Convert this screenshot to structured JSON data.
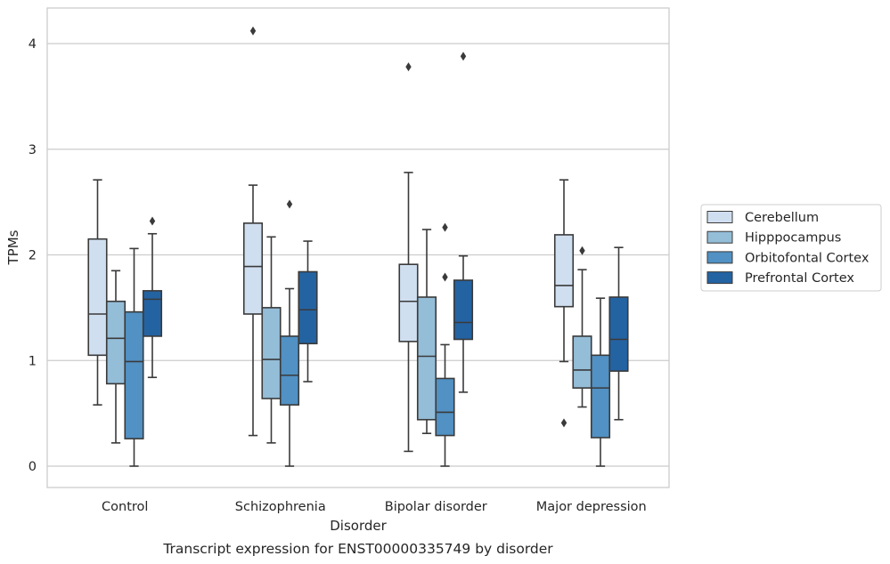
{
  "chart_data": {
    "type": "box",
    "caption": "Transcript expression for ENST00000335749 by disorder",
    "xlabel": "Disorder",
    "ylabel": "TPMs",
    "categories": [
      "Control",
      "Schizophrenia",
      "Bipolar disorder",
      "Major depression"
    ],
    "ylim": [
      -0.2,
      4.33
    ],
    "yticks": [
      0,
      1,
      2,
      3,
      4
    ],
    "grid": "horizontal",
    "legend": {
      "position": "right",
      "title": ""
    },
    "series": [
      {
        "name": "Cerebellum",
        "color": "#d0dff0",
        "boxes": [
          {
            "whislo": 0.58,
            "q1": 1.05,
            "med": 1.44,
            "q3": 2.15,
            "whishi": 2.71,
            "fliers": []
          },
          {
            "whislo": 0.29,
            "q1": 1.44,
            "med": 1.89,
            "q3": 2.3,
            "whishi": 2.66,
            "fliers": [
              4.12
            ]
          },
          {
            "whislo": 0.14,
            "q1": 1.18,
            "med": 1.56,
            "q3": 1.91,
            "whishi": 2.78,
            "fliers": [
              3.78
            ]
          },
          {
            "whislo": 0.99,
            "q1": 1.51,
            "med": 1.71,
            "q3": 2.19,
            "whishi": 2.71,
            "fliers": [
              0.41
            ]
          }
        ]
      },
      {
        "name": "Hipppocampus",
        "color": "#94bdd8",
        "boxes": [
          {
            "whislo": 0.22,
            "q1": 0.78,
            "med": 1.21,
            "q3": 1.56,
            "whishi": 1.85,
            "fliers": []
          },
          {
            "whislo": 0.22,
            "q1": 0.64,
            "med": 1.01,
            "q3": 1.5,
            "whishi": 2.17,
            "fliers": []
          },
          {
            "whislo": 0.31,
            "q1": 0.44,
            "med": 1.04,
            "q3": 1.6,
            "whishi": 2.24,
            "fliers": []
          },
          {
            "whislo": 0.56,
            "q1": 0.74,
            "med": 0.91,
            "q3": 1.23,
            "whishi": 1.86,
            "fliers": [
              2.04
            ]
          }
        ]
      },
      {
        "name": "Orbitofontal Cortex",
        "color": "#5191c3",
        "boxes": [
          {
            "whislo": 0.0,
            "q1": 0.26,
            "med": 0.99,
            "q3": 1.46,
            "whishi": 2.06,
            "fliers": []
          },
          {
            "whislo": 0.0,
            "q1": 0.58,
            "med": 0.86,
            "q3": 1.23,
            "whishi": 1.68,
            "fliers": [
              2.48
            ]
          },
          {
            "whislo": 0.0,
            "q1": 0.29,
            "med": 0.51,
            "q3": 0.83,
            "whishi": 1.15,
            "fliers": [
              2.26,
              1.79
            ]
          },
          {
            "whislo": 0.0,
            "q1": 0.27,
            "med": 0.74,
            "q3": 1.05,
            "whishi": 1.59,
            "fliers": []
          }
        ]
      },
      {
        "name": "Prefrontal Cortex",
        "color": "#2463a2",
        "boxes": [
          {
            "whislo": 0.84,
            "q1": 1.23,
            "med": 1.58,
            "q3": 1.66,
            "whishi": 2.2,
            "fliers": [
              2.32
            ]
          },
          {
            "whislo": 0.8,
            "q1": 1.16,
            "med": 1.48,
            "q3": 1.84,
            "whishi": 2.13,
            "fliers": []
          },
          {
            "whislo": 0.7,
            "q1": 1.2,
            "med": 1.36,
            "q3": 1.76,
            "whishi": 1.99,
            "fliers": [
              3.88
            ]
          },
          {
            "whislo": 0.44,
            "q1": 0.9,
            "med": 1.2,
            "q3": 1.6,
            "whishi": 2.07,
            "fliers": []
          }
        ]
      }
    ]
  }
}
